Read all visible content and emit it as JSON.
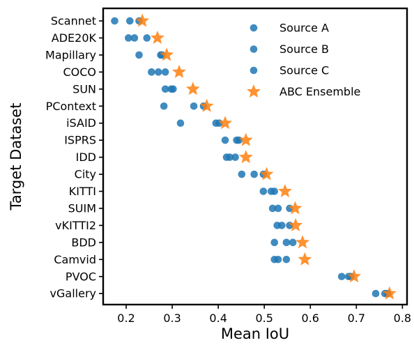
{
  "chart_data": {
    "type": "scatter",
    "title": "",
    "xlabel": "Mean IoU",
    "ylabel": "Target Dataset",
    "xlim": [
      0.15,
      0.81
    ],
    "xticks": [
      0.2,
      0.3,
      0.4,
      0.5,
      0.6,
      0.7,
      0.8
    ],
    "xtick_labels": [
      "0.2",
      "0.3",
      "0.4",
      "0.5",
      "0.6",
      "0.7",
      "0.8"
    ],
    "categories": [
      "Scannet",
      "ADE20K",
      "Mapillary",
      "COCO",
      "SUN",
      "PContext",
      "iSAID",
      "ISPRS",
      "IDD",
      "City",
      "KITTI",
      "SUIM",
      "vKITTI2",
      "BDD",
      "Camvid",
      "PVOC",
      "vGallery"
    ],
    "grid": false,
    "legend_position": "top-right",
    "series": [
      {
        "name": "Source A",
        "marker": "circle",
        "color": "#1f77b4",
        "values": [
          0.175,
          0.205,
          0.228,
          0.255,
          0.285,
          0.282,
          0.318,
          0.415,
          0.418,
          0.451,
          0.498,
          0.518,
          0.528,
          0.522,
          0.522,
          0.668,
          0.742
        ]
      },
      {
        "name": "Source B",
        "marker": "circle",
        "color": "#1f77b4",
        "values": [
          0.208,
          0.218,
          0.275,
          0.27,
          0.298,
          0.347,
          0.395,
          0.44,
          0.425,
          0.478,
          0.515,
          0.53,
          0.538,
          0.548,
          0.53,
          0.683,
          0.762
        ]
      },
      {
        "name": "Source C",
        "marker": "circle",
        "color": "#1f77b4",
        "values": [
          0.228,
          0.245,
          0.278,
          0.285,
          0.302,
          0.368,
          0.402,
          0.445,
          0.437,
          0.498,
          0.522,
          0.555,
          0.555,
          0.562,
          0.548,
          0.688,
          0.768
        ]
      },
      {
        "name": "ABC Ensemble",
        "marker": "star",
        "color": "#ff7f0e",
        "values": [
          0.235,
          0.268,
          0.288,
          0.315,
          0.345,
          0.375,
          0.415,
          0.46,
          0.46,
          0.505,
          0.545,
          0.567,
          0.568,
          0.583,
          0.588,
          0.695,
          0.772
        ]
      }
    ]
  }
}
